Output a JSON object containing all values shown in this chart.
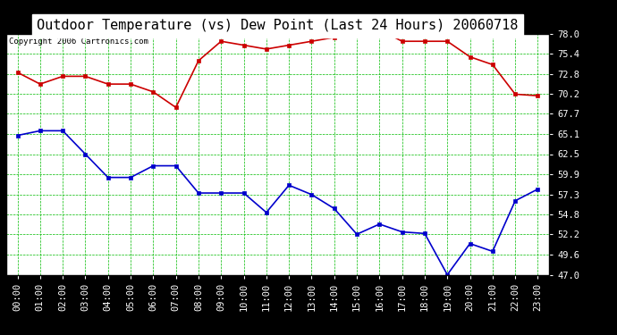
{
  "title": "Outdoor Temperature (vs) Dew Point (Last 24 Hours) 20060718",
  "copyright": "Copyright 2006 Cartronics.com",
  "hours": [
    "00:00",
    "01:00",
    "02:00",
    "03:00",
    "04:00",
    "05:00",
    "06:00",
    "07:00",
    "08:00",
    "09:00",
    "10:00",
    "11:00",
    "12:00",
    "13:00",
    "14:00",
    "15:00",
    "16:00",
    "17:00",
    "18:00",
    "19:00",
    "20:00",
    "21:00",
    "22:00",
    "23:00"
  ],
  "temp": [
    73.0,
    71.5,
    72.5,
    72.5,
    71.5,
    71.5,
    70.5,
    68.5,
    74.5,
    77.0,
    76.5,
    76.0,
    76.5,
    77.0,
    77.5,
    78.5,
    78.5,
    77.0,
    77.0,
    77.0,
    75.0,
    74.0,
    70.2,
    70.0
  ],
  "dew": [
    64.9,
    65.5,
    65.5,
    62.5,
    59.5,
    59.5,
    61.0,
    61.0,
    57.5,
    57.5,
    57.5,
    55.0,
    58.5,
    57.3,
    55.5,
    52.2,
    53.5,
    52.5,
    52.3,
    47.0,
    51.0,
    50.0,
    56.5,
    58.0
  ],
  "ylim_min": 47.0,
  "ylim_max": 78.0,
  "yticks": [
    47.0,
    49.6,
    52.2,
    54.8,
    57.3,
    59.9,
    62.5,
    65.1,
    67.7,
    70.2,
    72.8,
    75.4,
    78.0
  ],
  "temp_color": "#cc0000",
  "dew_color": "#0000cc",
  "grid_color": "#00bb00",
  "background_color": "#ffffff",
  "plot_bg_color": "#ffffff",
  "outer_bg_color": "#000000",
  "marker": "s",
  "marker_size": 2.5,
  "line_width": 1.2,
  "title_fontsize": 11,
  "tick_fontsize": 7.5,
  "copyright_fontsize": 6.5
}
